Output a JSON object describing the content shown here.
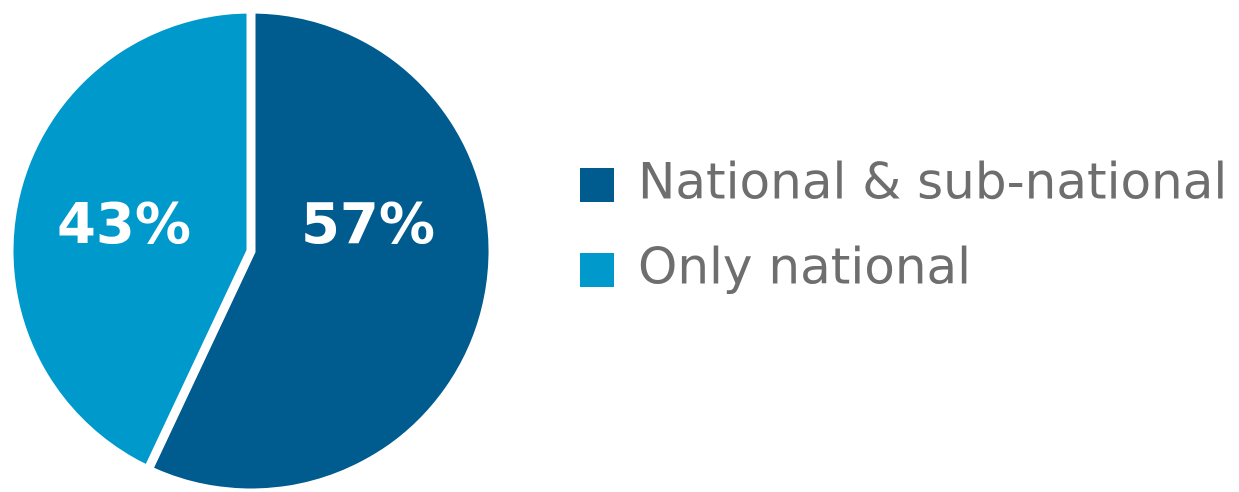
{
  "chart_data": {
    "type": "pie",
    "title": "",
    "categories": [
      "National & sub-national",
      "Only national"
    ],
    "values": [
      57,
      43
    ],
    "value_labels": [
      "57%",
      "43%"
    ],
    "colors": [
      "#005b8f",
      "#0099cc"
    ],
    "legend": {
      "placement": "right",
      "entries": [
        "National & sub-national",
        "Only national"
      ]
    },
    "start": "12 o'clock",
    "direction": "clockwise"
  }
}
